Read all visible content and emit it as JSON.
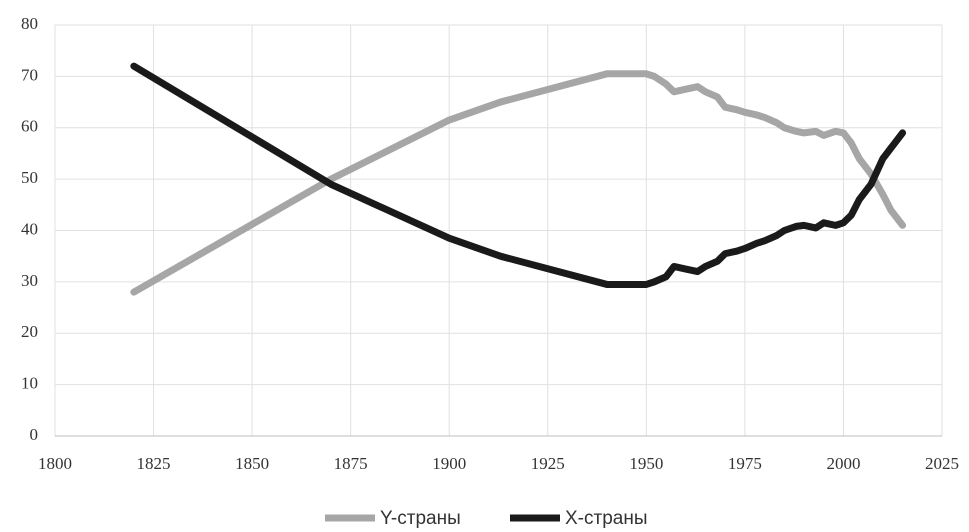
{
  "chart_data": {
    "type": "line",
    "x": [
      1820,
      1870,
      1900,
      1913,
      1940,
      1950,
      1952,
      1955,
      1957,
      1960,
      1963,
      1965,
      1968,
      1970,
      1973,
      1975,
      1978,
      1980,
      1983,
      1985,
      1988,
      1990,
      1993,
      1995,
      1998,
      2000,
      2002,
      2004,
      2007,
      2010,
      2012,
      2015
    ],
    "series": [
      {
        "name": "Y-страны",
        "color": "#a6a6a6",
        "values": [
          28,
          50,
          61.5,
          65,
          70.5,
          70.5,
          70,
          68.5,
          67,
          67.5,
          68,
          67,
          66,
          64,
          63.5,
          63,
          62.5,
          62,
          61,
          60,
          59.3,
          59,
          59.3,
          58.5,
          59.3,
          59,
          57,
          54,
          51,
          47,
          44,
          41
        ]
      },
      {
        "name": "X-страны",
        "color": "#1a1a1a",
        "values": [
          72,
          49,
          38.5,
          35,
          29.5,
          29.5,
          30,
          31,
          33,
          32.5,
          32,
          33,
          34,
          35.5,
          36,
          36.5,
          37.5,
          38,
          39,
          40,
          40.8,
          41,
          40.5,
          41.5,
          41,
          41.5,
          43,
          46,
          49,
          54,
          56,
          59
        ]
      }
    ],
    "xlim": [
      1800,
      2025
    ],
    "xticks": [
      1800,
      1825,
      1850,
      1875,
      1900,
      1925,
      1950,
      1975,
      2000,
      2025
    ],
    "ylim": [
      0,
      80
    ],
    "yticks": [
      0,
      10,
      20,
      30,
      40,
      50,
      60,
      70,
      80
    ],
    "grid": true,
    "legend": "bottom"
  }
}
